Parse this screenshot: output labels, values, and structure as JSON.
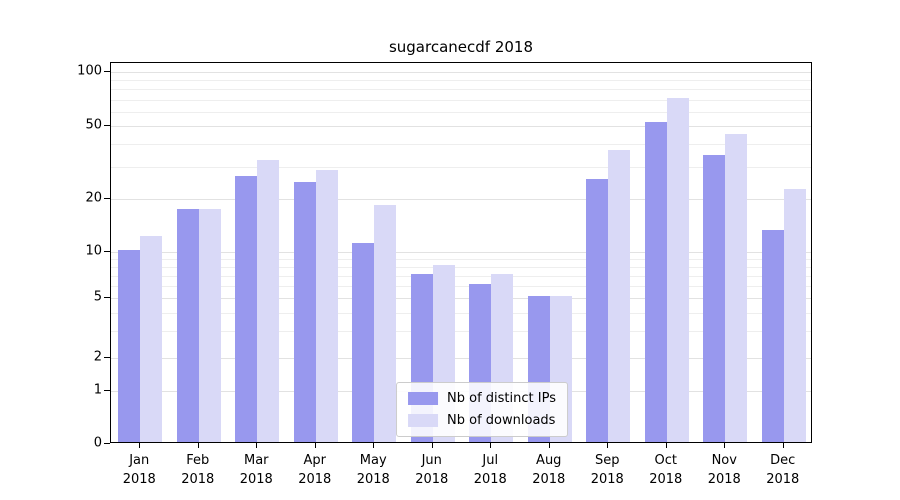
{
  "chart_data": {
    "type": "bar",
    "title": "sugarcanecdf 2018",
    "categories": [
      "Jan",
      "Feb",
      "Mar",
      "Apr",
      "May",
      "Jun",
      "Jul",
      "Aug",
      "Sep",
      "Oct",
      "Nov",
      "Dec"
    ],
    "x_year_label": "2018",
    "series": [
      {
        "name": "Nb of distinct IPs",
        "color": "#9898ee",
        "values": [
          10,
          17,
          26,
          24,
          11,
          7,
          6,
          5,
          25,
          51,
          34,
          13
        ]
      },
      {
        "name": "Nb of downloads",
        "color": "#d9d9f7",
        "values": [
          12,
          17,
          32,
          28,
          18,
          8,
          7,
          5,
          36,
          70,
          44,
          22
        ]
      }
    ],
    "yticks": [
      0,
      1,
      2,
      5,
      10,
      20,
      50,
      100
    ],
    "minor_gridlines": [
      3,
      4,
      6,
      7,
      8,
      9,
      30,
      40,
      60,
      70,
      80,
      90
    ],
    "scale": "symlog",
    "ylim": [
      0,
      100
    ],
    "grid": true,
    "legend_position": "lower center",
    "xlabel": "",
    "ylabel": ""
  }
}
